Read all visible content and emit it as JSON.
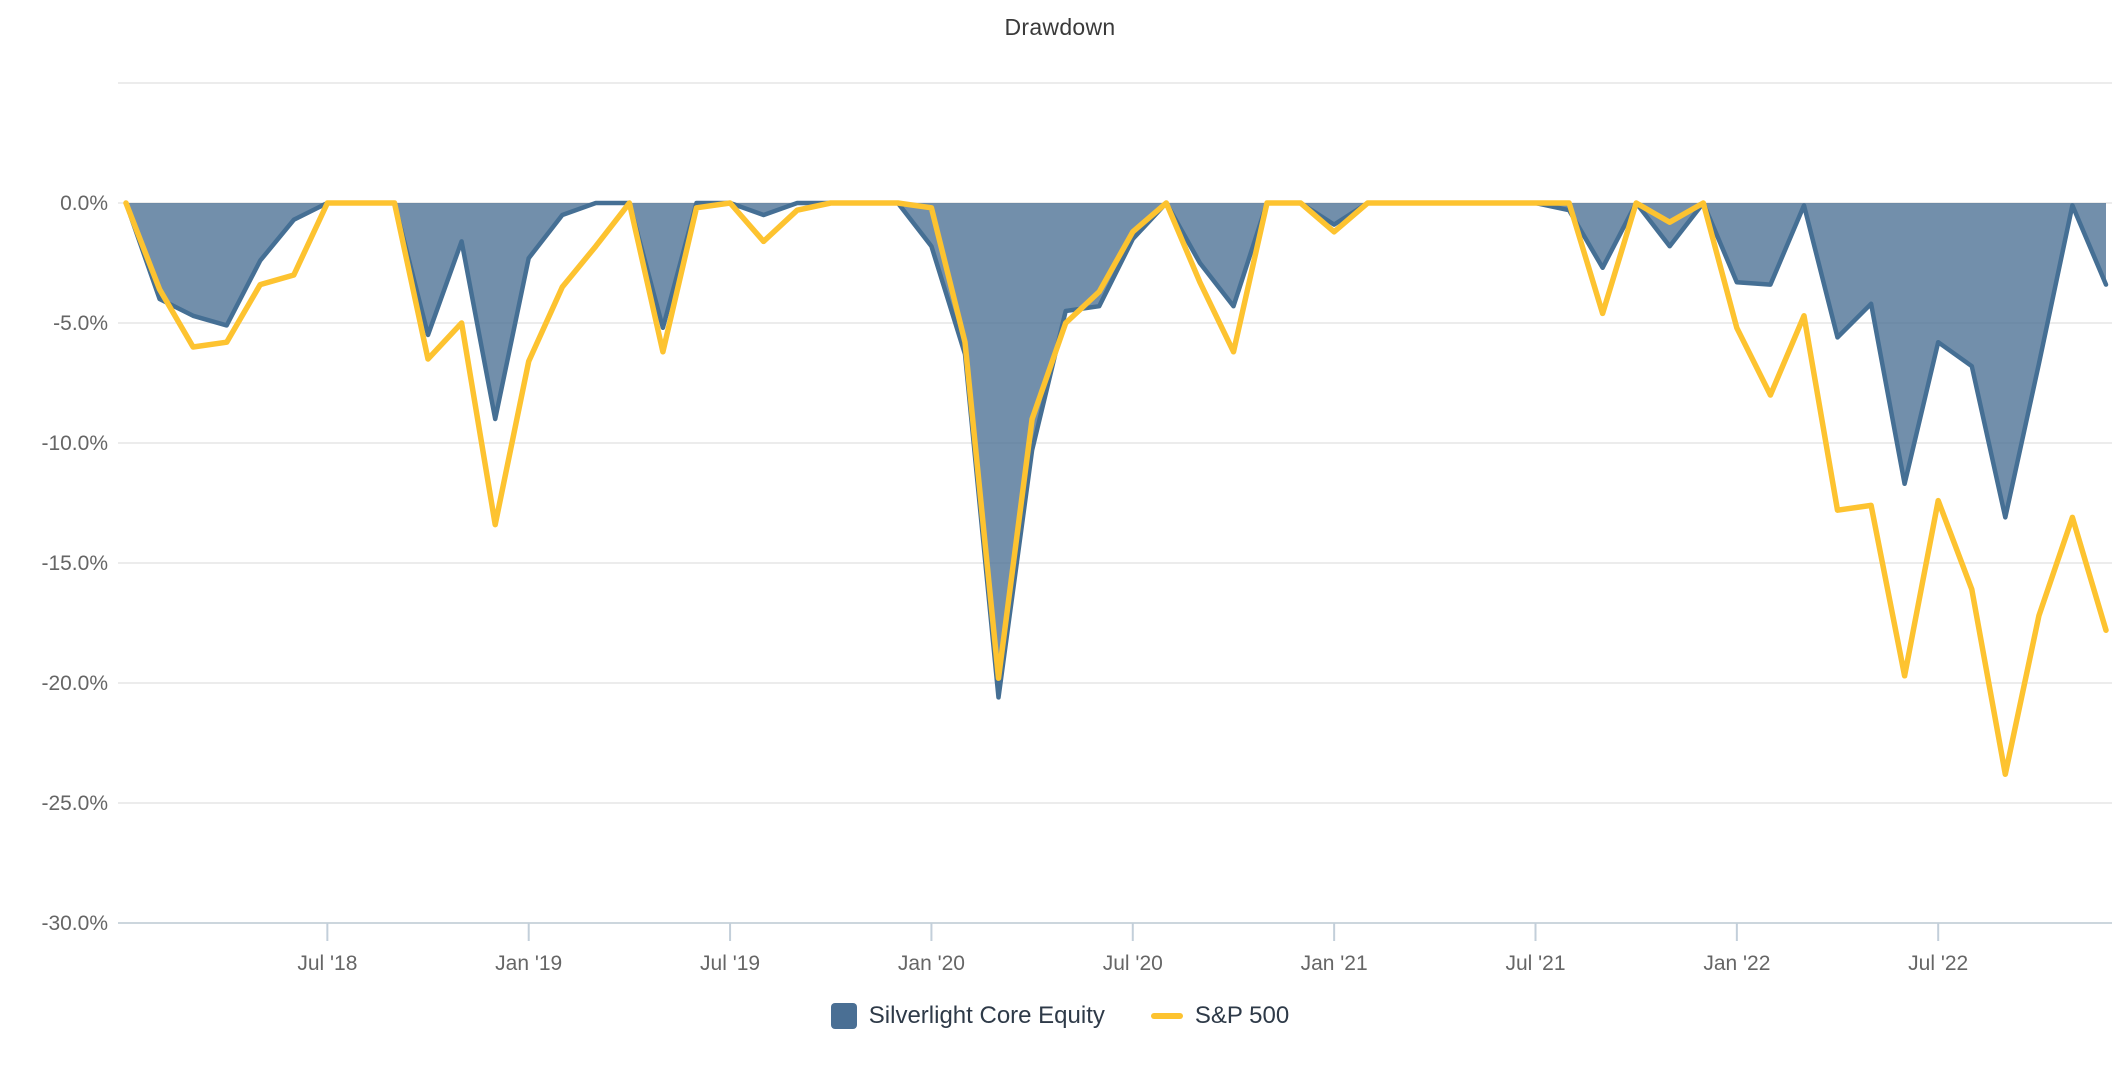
{
  "title": "Drawdown",
  "colors": {
    "fund_fill": "rgba(74,111,148,0.78)",
    "fund_line": "#456f94",
    "fund_swatch": "#4a6f94",
    "benchmark_line": "#fdc330",
    "gridline": "#e6e6e6",
    "axis_line": "#ccd6dd",
    "tick_mark": "#c3cfda",
    "axis_text": "#666666"
  },
  "legend": [
    {
      "label": "Silverlight Core Equity",
      "type": "area"
    },
    {
      "label": "S&P 500",
      "type": "line"
    }
  ],
  "chart_data": {
    "type": "area",
    "title": "Drawdown",
    "xlabel": "",
    "ylabel": "",
    "grid": true,
    "legend_position": "bottom",
    "ylim": [
      -30.5,
      5
    ],
    "ytick_step": 5,
    "yticks_labeled": [
      "0.0%",
      "-5.0%",
      "-10.0%",
      "-15.0%",
      "-20.0%",
      "-25.0%",
      "-30.0%"
    ],
    "xticks": [
      {
        "label": "Jul '18",
        "month_index": 6
      },
      {
        "label": "Jan '19",
        "month_index": 12
      },
      {
        "label": "Jul '19",
        "month_index": 18
      },
      {
        "label": "Jan '20",
        "month_index": 24
      },
      {
        "label": "Jul '20",
        "month_index": 30
      },
      {
        "label": "Jan '21",
        "month_index": 36
      },
      {
        "label": "Jul '21",
        "month_index": 42
      },
      {
        "label": "Jan '22",
        "month_index": 48
      },
      {
        "label": "Jul '22",
        "month_index": 54
      }
    ],
    "categories": [
      "Jan '18",
      "Feb '18",
      "Mar '18",
      "Apr '18",
      "May '18",
      "Jun '18",
      "Jul '18",
      "Aug '18",
      "Sep '18",
      "Oct '18",
      "Nov '18",
      "Dec '18",
      "Jan '19",
      "Feb '19",
      "Mar '19",
      "Apr '19",
      "May '19",
      "Jun '19",
      "Jul '19",
      "Aug '19",
      "Sep '19",
      "Oct '19",
      "Nov '19",
      "Dec '19",
      "Jan '20",
      "Feb '20",
      "Mar '20",
      "Apr '20",
      "May '20",
      "Jun '20",
      "Jul '20",
      "Aug '20",
      "Sep '20",
      "Oct '20",
      "Nov '20",
      "Dec '20",
      "Jan '21",
      "Feb '21",
      "Mar '21",
      "Apr '21",
      "May '21",
      "Jun '21",
      "Jul '21",
      "Aug '21",
      "Sep '21",
      "Oct '21",
      "Nov '21",
      "Dec '21",
      "Jan '22",
      "Feb '22",
      "Mar '22",
      "Apr '22",
      "May '22",
      "Jun '22",
      "Jul '22",
      "Aug '22",
      "Sep '22",
      "Oct '22",
      "Nov '22",
      "Dec '22"
    ],
    "series": [
      {
        "name": "Silverlight Core Equity",
        "style": "area",
        "values": [
          0.0,
          -4.0,
          -4.7,
          -5.1,
          -2.4,
          -0.7,
          0.0,
          0.0,
          0.0,
          -5.5,
          -1.6,
          -9.0,
          -2.3,
          -0.5,
          0.0,
          0.0,
          -5.2,
          0.0,
          0.0,
          -0.5,
          0.0,
          0.0,
          0.0,
          0.0,
          -1.8,
          -6.3,
          -20.6,
          -10.3,
          -4.5,
          -4.3,
          -1.5,
          0.0,
          -2.5,
          -4.3,
          0.0,
          0.0,
          -0.9,
          0.0,
          0.0,
          0.0,
          0.0,
          0.0,
          0.0,
          -0.3,
          -2.7,
          0.0,
          -1.8,
          0.0,
          -3.3,
          -3.4,
          -0.1,
          -5.6,
          -4.2,
          -11.7,
          -5.8,
          -6.8,
          -13.1,
          -6.7,
          -0.1,
          -3.4
        ]
      },
      {
        "name": "S&P 500",
        "style": "line",
        "values": [
          0.0,
          -3.6,
          -6.0,
          -5.8,
          -3.4,
          -3.0,
          0.0,
          0.0,
          0.0,
          -6.5,
          -5.0,
          -13.4,
          -6.6,
          -3.5,
          -1.8,
          0.0,
          -6.2,
          -0.2,
          0.0,
          -1.6,
          -0.3,
          0.0,
          0.0,
          0.0,
          -0.2,
          -5.8,
          -19.8,
          -9.0,
          -5.0,
          -3.7,
          -1.2,
          0.0,
          -3.3,
          -6.2,
          0.0,
          0.0,
          -1.2,
          0.0,
          0.0,
          0.0,
          0.0,
          0.0,
          0.0,
          0.0,
          -4.6,
          0.0,
          -0.8,
          0.0,
          -5.2,
          -8.0,
          -4.7,
          -12.8,
          -12.6,
          -19.7,
          -12.4,
          -16.1,
          -23.8,
          -17.2,
          -13.1,
          -17.8
        ]
      }
    ]
  }
}
